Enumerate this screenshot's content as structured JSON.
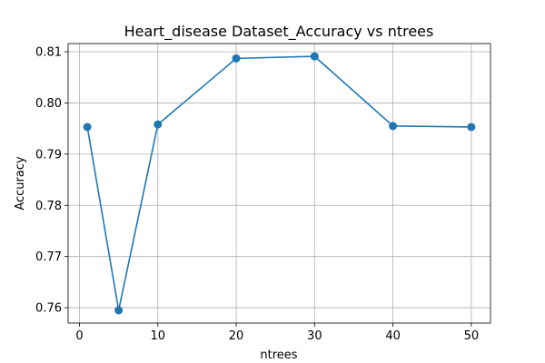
{
  "chart_data": {
    "type": "line",
    "title": "Heart_disease Dataset_Accuracy vs ntrees",
    "xlabel": "ntrees",
    "ylabel": "Accuracy",
    "x": [
      1,
      5,
      10,
      20,
      30,
      40,
      50
    ],
    "series": [
      {
        "values": [
          0.7953,
          0.7595,
          0.7958,
          0.8087,
          0.8091,
          0.7955,
          0.7953
        ],
        "color": "#1f77b4",
        "marker": "circle"
      }
    ],
    "xlim": [
      -1.45,
      52.45
    ],
    "ylim": [
      0.757,
      0.8116
    ],
    "xticks": [
      0,
      10,
      20,
      30,
      40,
      50
    ],
    "xtick_labels": [
      "0",
      "10",
      "20",
      "30",
      "40",
      "50"
    ],
    "yticks": [
      0.76,
      0.77,
      0.78,
      0.79,
      0.8,
      0.81
    ],
    "ytick_labels": [
      "0.76",
      "0.77",
      "0.78",
      "0.79",
      "0.80",
      "0.81"
    ],
    "grid": true
  }
}
